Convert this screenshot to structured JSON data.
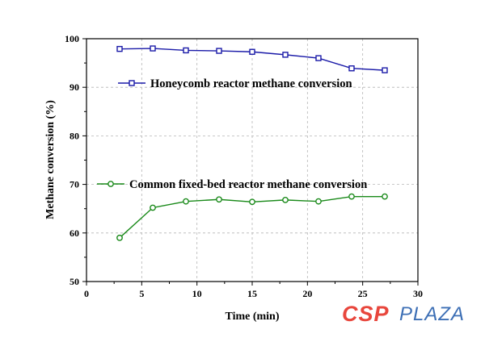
{
  "chart_data": {
    "type": "line",
    "title": "",
    "xlabel": "Time (min)",
    "ylabel": "Methane conversion (%)",
    "xlim": [
      0,
      30
    ],
    "ylim": [
      50,
      100
    ],
    "xticks": [
      0,
      5,
      10,
      15,
      20,
      25,
      30
    ],
    "yticks": [
      50,
      60,
      70,
      80,
      90,
      100
    ],
    "grid": true,
    "series": [
      {
        "name": "Honeycomb reactor methane conversion",
        "color": "#1a1aa8",
        "marker": "square",
        "x": [
          3,
          6,
          9,
          12,
          15,
          18,
          21,
          24,
          27
        ],
        "y": [
          97.9,
          98.0,
          97.6,
          97.5,
          97.3,
          96.7,
          96.0,
          93.9,
          93.5
        ]
      },
      {
        "name": "Common fixed-bed reactor methane conversion",
        "color": "#1a8a1a",
        "marker": "circle",
        "x": [
          3,
          6,
          9,
          12,
          15,
          18,
          21,
          24,
          27
        ],
        "y": [
          59.0,
          65.2,
          66.5,
          66.9,
          66.4,
          66.8,
          66.5,
          67.5,
          67.5
        ]
      }
    ]
  },
  "watermark": {
    "part1": "CSP",
    "part2": "PLAZA",
    "color1": "#e8463c",
    "color2": "#3d6fb5"
  }
}
